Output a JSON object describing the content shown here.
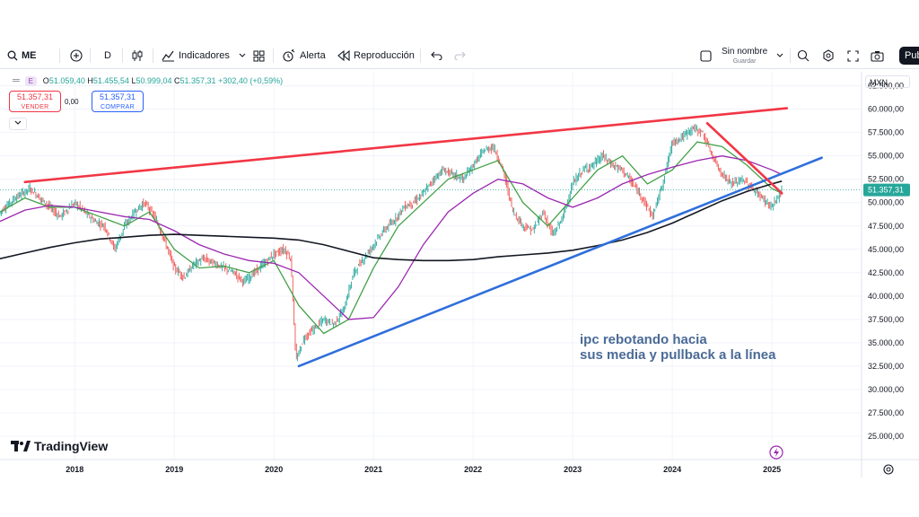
{
  "toolbar": {
    "symbol": "ME",
    "interval": "D",
    "indicators_label": "Indicadores",
    "alert_label": "Alerta",
    "replay_label": "Reproducción",
    "layout_name": "Sin nombre",
    "layout_save": "Guardar",
    "publish_label": "Publ"
  },
  "legend": {
    "badge": "E",
    "open_label": "O",
    "open": "51.059,40",
    "high_label": "H",
    "high": "51.455,54",
    "low_label": "L",
    "low": "50.999,04",
    "close_label": "C",
    "close": "51.357,31",
    "change": "+302,40 (+0,59%)"
  },
  "trade": {
    "sell_price": "51.357,31",
    "sell_label": "VENDER",
    "spread": "0,00",
    "buy_price": "51.357,31",
    "buy_label": "COMPRAR"
  },
  "currency": "MXN",
  "logo_text": "TradingView",
  "annotation": {
    "line1": "ipc rebotando hacia",
    "line2": "sus media y pullback a la línea"
  },
  "colors": {
    "up": "#26a69a",
    "down": "#ef5350",
    "ma_fast": "#43a047",
    "ma_mid": "#9c27b0",
    "ma_slow": "#131722",
    "resistance": "#f23645",
    "support": "#2f6fdb",
    "note": "#4a6a96"
  },
  "chart_data": {
    "type": "line",
    "title": "",
    "xlabel": "",
    "ylabel": "",
    "ylim": [
      22500,
      64000
    ],
    "xlim": [
      2017.25,
      2025.9
    ],
    "x_ticks": [
      2018,
      2019,
      2020,
      2021,
      2022,
      2023,
      2024,
      2025
    ],
    "x_tick_labels": [
      "2018",
      "2019",
      "2020",
      "2021",
      "2022",
      "2023",
      "2024",
      "2025"
    ],
    "y_ticks": [
      25000,
      27500,
      30000,
      32500,
      35000,
      37500,
      40000,
      42500,
      45000,
      47500,
      50000,
      52500,
      55000,
      57500,
      60000,
      62500
    ],
    "y_tick_labels": [
      "25.000,00",
      "27.500,00",
      "30.000,00",
      "32.500,00",
      "35.000,00",
      "37.500,00",
      "40.000,00",
      "42.500,00",
      "45.000,00",
      "47.500,00",
      "50.000,00",
      "52.500,00",
      "55.000,00",
      "57.500,00",
      "60.000,00",
      "62.500,00"
    ],
    "last_price": 51357.31,
    "last_price_label": "51.357,31",
    "price": {
      "x": [
        2017.25,
        2017.4,
        2017.55,
        2017.7,
        2017.85,
        2018.0,
        2018.1,
        2018.2,
        2018.3,
        2018.4,
        2018.5,
        2018.6,
        2018.7,
        2018.8,
        2018.9,
        2019.0,
        2019.1,
        2019.2,
        2019.3,
        2019.4,
        2019.5,
        2019.6,
        2019.7,
        2019.8,
        2019.9,
        2020.0,
        2020.1,
        2020.17,
        2020.22,
        2020.3,
        2020.4,
        2020.5,
        2020.6,
        2020.7,
        2020.8,
        2020.9,
        2021.0,
        2021.1,
        2021.2,
        2021.3,
        2021.4,
        2021.5,
        2021.6,
        2021.7,
        2021.8,
        2021.9,
        2022.0,
        2022.1,
        2022.2,
        2022.3,
        2022.4,
        2022.5,
        2022.6,
        2022.7,
        2022.8,
        2022.9,
        2023.0,
        2023.1,
        2023.2,
        2023.3,
        2023.4,
        2023.5,
        2023.6,
        2023.7,
        2023.8,
        2023.9,
        2024.0,
        2024.1,
        2024.2,
        2024.3,
        2024.4,
        2024.5,
        2024.6,
        2024.7,
        2024.8,
        2024.9,
        2025.0,
        2025.1
      ],
      "y": [
        49000,
        50500,
        51500,
        50000,
        48500,
        50000,
        49000,
        48000,
        47500,
        45000,
        47500,
        49000,
        50000,
        48500,
        46000,
        43000,
        42000,
        43500,
        44000,
        43500,
        43000,
        42500,
        41500,
        42500,
        43500,
        44500,
        45000,
        44000,
        33000,
        35500,
        36500,
        37500,
        37000,
        38500,
        42500,
        44000,
        45500,
        47000,
        48000,
        49500,
        50000,
        51000,
        52500,
        53500,
        53000,
        52500,
        54000,
        55500,
        56000,
        53500,
        49000,
        47500,
        47000,
        49000,
        46500,
        48500,
        52000,
        53500,
        54000,
        55000,
        54000,
        53500,
        52000,
        50500,
        48500,
        52000,
        56500,
        57000,
        58000,
        57500,
        55000,
        53000,
        52000,
        52500,
        51500,
        50500,
        49500,
        51357
      ]
    },
    "series": [
      {
        "x": [
          2017.25,
          2017.5,
          2017.75,
          2018.0,
          2018.25,
          2018.5,
          2018.75,
          2019.0,
          2019.25,
          2019.5,
          2019.75,
          2020.0,
          2020.25,
          2020.5,
          2020.75,
          2021.0,
          2021.25,
          2021.5,
          2021.75,
          2022.0,
          2022.25,
          2022.5,
          2022.75,
          2023.0,
          2023.25,
          2023.5,
          2023.75,
          2024.0,
          2024.25,
          2024.5,
          2024.75,
          2025.0,
          2025.1
        ],
        "y": [
          49000,
          50500,
          49500,
          49500,
          48500,
          47500,
          49000,
          45000,
          43000,
          43200,
          42500,
          43800,
          39000,
          36000,
          37500,
          43000,
          47500,
          50000,
          52500,
          53500,
          54500,
          50000,
          47500,
          50500,
          53500,
          55000,
          52000,
          53500,
          56500,
          56000,
          54000,
          51500,
          51000
        ]
      },
      {
        "x": [
          2017.25,
          2017.5,
          2017.75,
          2018.0,
          2018.25,
          2018.5,
          2018.75,
          2019.0,
          2019.25,
          2019.5,
          2019.75,
          2020.0,
          2020.25,
          2020.5,
          2020.75,
          2021.0,
          2021.25,
          2021.5,
          2021.75,
          2022.0,
          2022.25,
          2022.5,
          2022.75,
          2023.0,
          2023.25,
          2023.5,
          2023.75,
          2024.0,
          2024.25,
          2024.5,
          2024.75,
          2025.0,
          2025.1
        ],
        "y": [
          48000,
          49200,
          49700,
          49500,
          49000,
          48500,
          48200,
          47000,
          45500,
          44500,
          43800,
          43500,
          42500,
          40000,
          37500,
          37700,
          41000,
          45500,
          49000,
          51000,
          52500,
          52000,
          50500,
          49500,
          50500,
          52000,
          53000,
          53800,
          54500,
          55000,
          54500,
          53500,
          53000
        ]
      },
      {
        "x": [
          2017.25,
          2017.5,
          2017.75,
          2018.0,
          2018.25,
          2018.5,
          2018.75,
          2019.0,
          2019.25,
          2019.5,
          2019.75,
          2020.0,
          2020.25,
          2020.5,
          2020.75,
          2021.0,
          2021.25,
          2021.5,
          2021.75,
          2022.0,
          2022.25,
          2022.5,
          2022.75,
          2023.0,
          2023.25,
          2023.5,
          2023.75,
          2024.0,
          2024.25,
          2024.5,
          2024.75,
          2025.0,
          2025.1
        ],
        "y": [
          44000,
          44600,
          45200,
          45700,
          46100,
          46300,
          46500,
          46600,
          46500,
          46400,
          46300,
          46200,
          46000,
          45500,
          44800,
          44100,
          43900,
          43800,
          43800,
          43900,
          44200,
          44400,
          44600,
          44900,
          45400,
          46000,
          46800,
          47800,
          49000,
          50200,
          51200,
          52000,
          52300
        ]
      }
    ],
    "trendlines": [
      {
        "x": [
          2017.5,
          2025.15
        ],
        "y": [
          52200,
          60100
        ]
      },
      {
        "x": [
          2020.25,
          2025.5
        ],
        "y": [
          32500,
          54800
        ]
      },
      {
        "x": [
          2024.35,
          2025.1
        ],
        "y": [
          58500,
          51000
        ]
      }
    ]
  }
}
